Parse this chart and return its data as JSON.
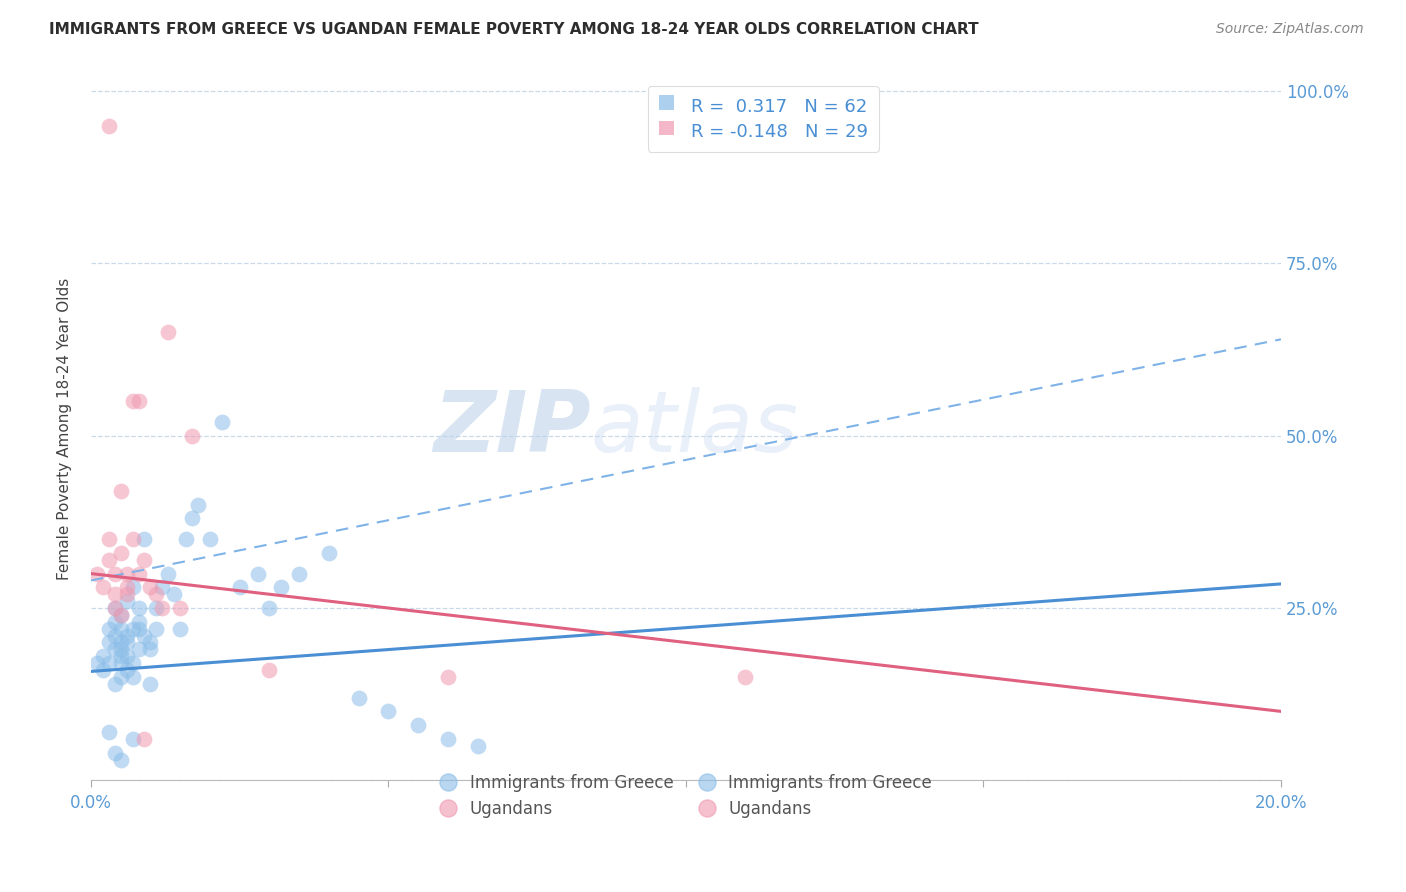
{
  "title": "IMMIGRANTS FROM GREECE VS UGANDAN FEMALE POVERTY AMONG 18-24 YEAR OLDS CORRELATION CHART",
  "source": "Source: ZipAtlas.com",
  "ylabel": "Female Poverty Among 18-24 Year Olds",
  "xlim": [
    0.0,
    0.2
  ],
  "ylim": [
    0.0,
    1.02
  ],
  "greece_color": "#8bbde8",
  "ugandan_color": "#f099b0",
  "greece_R": 0.317,
  "greece_N": 62,
  "ugandan_R": -0.148,
  "ugandan_N": 29,
  "watermark_zip": "ZIP",
  "watermark_atlas": "atlas",
  "greece_scatter_x": [
    0.001,
    0.002,
    0.002,
    0.003,
    0.003,
    0.003,
    0.004,
    0.004,
    0.004,
    0.004,
    0.004,
    0.005,
    0.005,
    0.005,
    0.005,
    0.005,
    0.005,
    0.005,
    0.006,
    0.006,
    0.006,
    0.006,
    0.006,
    0.007,
    0.007,
    0.007,
    0.007,
    0.008,
    0.008,
    0.008,
    0.009,
    0.009,
    0.01,
    0.01,
    0.011,
    0.011,
    0.012,
    0.013,
    0.014,
    0.015,
    0.016,
    0.017,
    0.018,
    0.02,
    0.022,
    0.025,
    0.028,
    0.03,
    0.032,
    0.035,
    0.04,
    0.045,
    0.05,
    0.055,
    0.06,
    0.065,
    0.003,
    0.004,
    0.005,
    0.007,
    0.008,
    0.01
  ],
  "greece_scatter_y": [
    0.17,
    0.16,
    0.18,
    0.2,
    0.17,
    0.22,
    0.19,
    0.21,
    0.23,
    0.14,
    0.25,
    0.15,
    0.18,
    0.2,
    0.22,
    0.17,
    0.19,
    0.24,
    0.16,
    0.21,
    0.26,
    0.18,
    0.2,
    0.15,
    0.22,
    0.28,
    0.17,
    0.23,
    0.19,
    0.25,
    0.21,
    0.35,
    0.2,
    0.14,
    0.22,
    0.25,
    0.28,
    0.3,
    0.27,
    0.22,
    0.35,
    0.38,
    0.4,
    0.35,
    0.52,
    0.28,
    0.3,
    0.25,
    0.28,
    0.3,
    0.33,
    0.12,
    0.1,
    0.08,
    0.06,
    0.05,
    0.07,
    0.04,
    0.03,
    0.06,
    0.22,
    0.19
  ],
  "ugandan_scatter_x": [
    0.001,
    0.002,
    0.003,
    0.003,
    0.004,
    0.004,
    0.005,
    0.005,
    0.006,
    0.006,
    0.007,
    0.007,
    0.008,
    0.009,
    0.01,
    0.011,
    0.012,
    0.013,
    0.015,
    0.017,
    0.03,
    0.11,
    0.003,
    0.005,
    0.008,
    0.06,
    0.004,
    0.006,
    0.009
  ],
  "ugandan_scatter_y": [
    0.3,
    0.28,
    0.32,
    0.35,
    0.27,
    0.3,
    0.33,
    0.42,
    0.28,
    0.3,
    0.55,
    0.35,
    0.3,
    0.32,
    0.28,
    0.27,
    0.25,
    0.65,
    0.25,
    0.5,
    0.16,
    0.15,
    0.95,
    0.24,
    0.55,
    0.15,
    0.25,
    0.27,
    0.06
  ],
  "greece_solid_line_x": [
    0.0,
    0.2
  ],
  "greece_solid_line_y": [
    0.158,
    0.285
  ],
  "greece_dash_line_x": [
    0.0,
    0.2
  ],
  "greece_dash_line_y": [
    0.29,
    0.64
  ],
  "ugandan_solid_line_x": [
    0.0,
    0.2
  ],
  "ugandan_solid_line_y": [
    0.3,
    0.1
  ]
}
